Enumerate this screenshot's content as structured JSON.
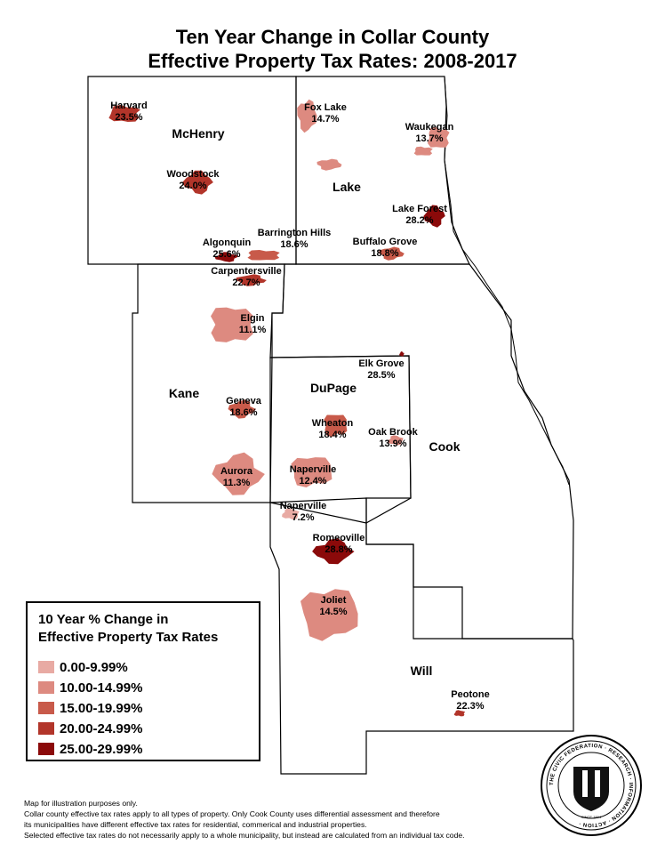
{
  "title_line1": "Ten Year Change in Collar County",
  "title_line2": "Effective Property Tax Rates: 2008-2017",
  "colors": {
    "class1": "#e8aaa3",
    "class2": "#dd8a80",
    "class3": "#c85a4a",
    "class4": "#b2352a",
    "class5": "#8b0a0a"
  },
  "counties": [
    {
      "name": "McHenry"
    },
    {
      "name": "Lake"
    },
    {
      "name": "Kane"
    },
    {
      "name": "DuPage"
    },
    {
      "name": "Cook"
    },
    {
      "name": "Will"
    }
  ],
  "municipalities": [
    {
      "name": "Harvard",
      "value": "23.5%",
      "class": "class4"
    },
    {
      "name": "Woodstock",
      "value": "24.0%",
      "class": "class4"
    },
    {
      "name": "Fox Lake",
      "value": "14.7%",
      "class": "class2"
    },
    {
      "name": "Waukegan",
      "value": "13.7%",
      "class": "class2"
    },
    {
      "name": "Lake Forest",
      "value": "28.2%",
      "class": "class5"
    },
    {
      "name": "Buffalo Grove",
      "value": "18.8%",
      "class": "class3"
    },
    {
      "name": "Barrington Hills",
      "value": "18.6%",
      "class": "class3"
    },
    {
      "name": "Algonquin",
      "value": "25.6%",
      "class": "class5"
    },
    {
      "name": "Carpentersville",
      "value": "22.7%",
      "class": "class4"
    },
    {
      "name": "Elgin",
      "value": "11.1%",
      "class": "class2"
    },
    {
      "name": "Elk Grove",
      "value": "28.5%",
      "class": "class5"
    },
    {
      "name": "Geneva",
      "value": "18.6%",
      "class": "class3"
    },
    {
      "name": "Wheaton",
      "value": "18.4%",
      "class": "class3"
    },
    {
      "name": "Oak Brook",
      "value": "13.9%",
      "class": "class2"
    },
    {
      "name": "Aurora",
      "value": "11.3%",
      "class": "class2"
    },
    {
      "name": "Naperville",
      "value": "12.4%",
      "class": "class2"
    },
    {
      "name": "Naperville",
      "value": "7.2%",
      "class": "class1"
    },
    {
      "name": "Romeoville",
      "value": "28.8%",
      "class": "class5"
    },
    {
      "name": "Joliet",
      "value": "14.5%",
      "class": "class2"
    },
    {
      "name": "Peotone",
      "value": "22.3%",
      "class": "class4"
    }
  ],
  "legend": {
    "title_line1": "10 Year % Change in",
    "title_line2": "Effective Property Tax Rates",
    "items": [
      {
        "label": "0.00-9.99%",
        "class": "class1"
      },
      {
        "label": "10.00-14.99%",
        "class": "class2"
      },
      {
        "label": "15.00-19.99%",
        "class": "class3"
      },
      {
        "label": "20.00-24.99%",
        "class": "class4"
      },
      {
        "label": "25.00-29.99%",
        "class": "class5"
      }
    ]
  },
  "notes": [
    "Map for illustration purposes only.",
    "Collar county effective tax rates apply to all types of property. Only Cook County uses differential assessment and therefore",
    "its municipalities have different effective tax rates for residential, commerical and industrial properties.",
    "Selected effective tax rates do not necessarily apply to a whole municipality, but instead are calculated from an individual tax code."
  ],
  "seal": {
    "ring_text": "THE CIVIC FEDERATION · RESEARCH · INFORMATION · ACTION ·",
    "year": "SINCE 1894"
  }
}
